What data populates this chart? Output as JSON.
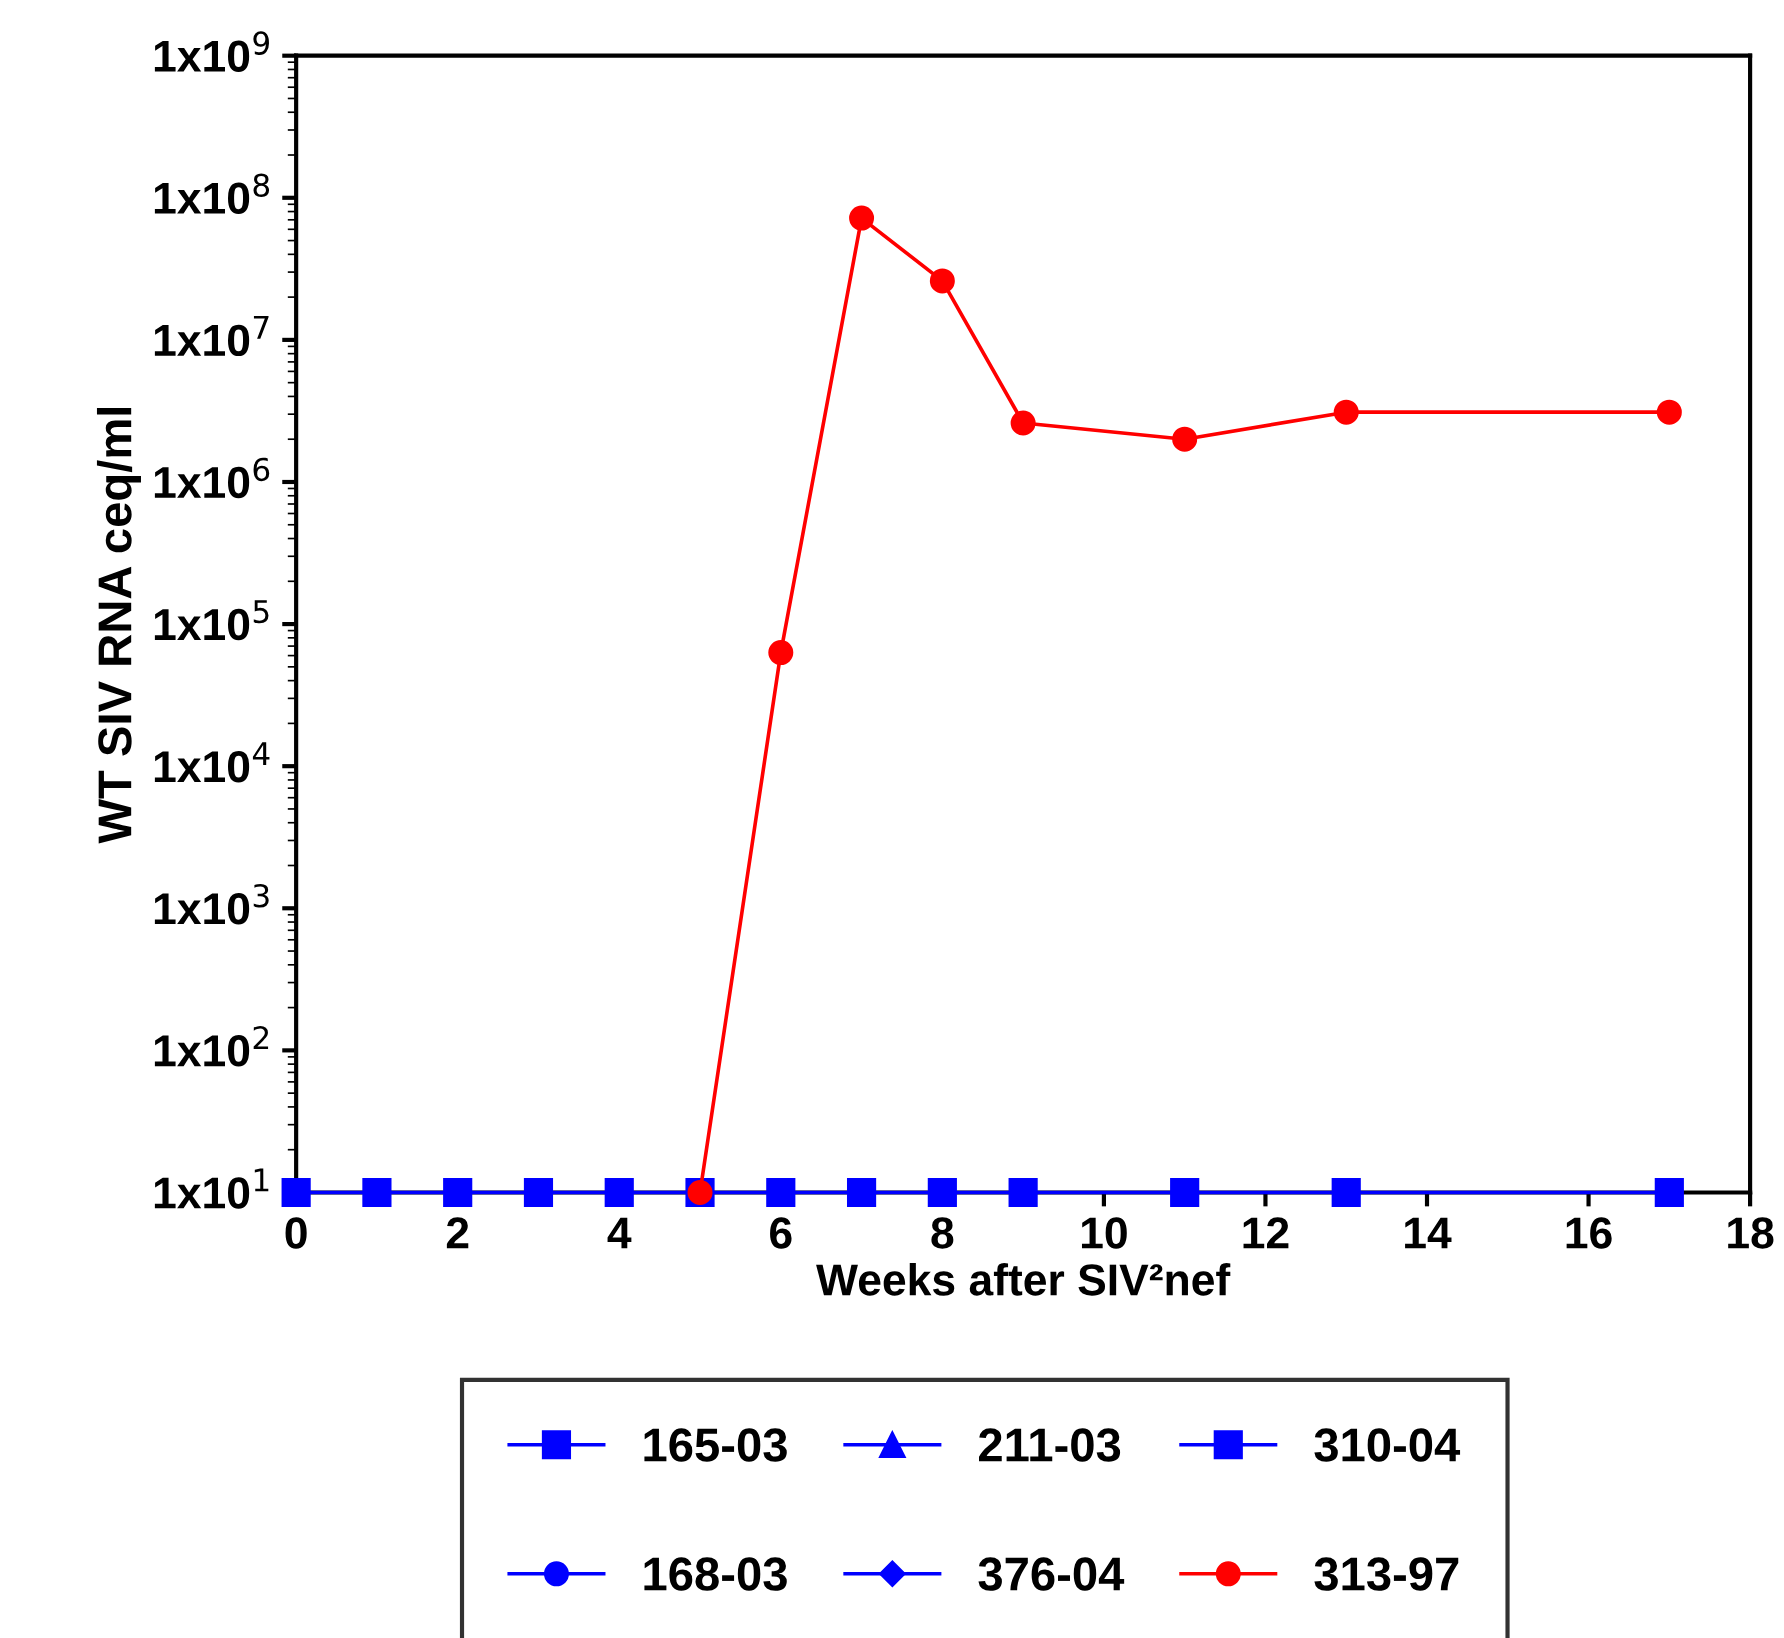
{
  "chart_data": {
    "type": "line",
    "xlabel": "Weeks after SIV²nef",
    "ylabel": "WT SIV RNA ceq/ml",
    "log": "y",
    "grid": false,
    "legend": "bottom",
    "line_style": "solid",
    "xlim": [
      0,
      18
    ],
    "xticks": [
      0,
      2,
      4,
      6,
      8,
      10,
      12,
      14,
      16,
      18
    ],
    "ylim": [
      10,
      1000000000
    ],
    "yticks": [
      {
        "value": 10,
        "label": "1x10$^{1}$"
      },
      {
        "value": 100,
        "label": "1x10$^{2}$"
      },
      {
        "value": 1000,
        "label": "1x10$^{3}$"
      },
      {
        "value": 10000,
        "label": "1x10$^{4}$"
      },
      {
        "value": 100000,
        "label": "1x10$^{5}$"
      },
      {
        "value": 1000000,
        "label": "1x10$^{6}$"
      },
      {
        "value": 10000000,
        "label": "1x10$^{7}$"
      },
      {
        "value": 100000000,
        "label": "1x10$^{8}$"
      },
      {
        "value": 1000000000,
        "label": "1x10$^{9}$"
      }
    ],
    "series": [
      {
        "name": "165-03",
        "color": "#0000ff",
        "marker": "square"
      },
      {
        "name": "168-03",
        "color": "#0000ff",
        "marker": "circle"
      },
      {
        "name": "211-03",
        "color": "#0000ff",
        "marker": "triangle"
      },
      {
        "name": "376-04",
        "color": "#0000ff",
        "marker": "diamond"
      },
      {
        "name": "310-04",
        "color": "#0000ff",
        "marker": "square",
        "x": [
          0,
          1,
          2,
          3,
          4,
          5,
          6,
          7,
          8,
          9,
          11,
          13,
          17
        ],
        "values": [
          10,
          10,
          10,
          10,
          10,
          10,
          10,
          10,
          10,
          10,
          10,
          10,
          10
        ]
      },
      {
        "name": "313-97",
        "color": "#ff0000",
        "marker": "circle",
        "x": [
          5,
          6,
          7,
          8,
          9,
          11,
          13,
          17
        ],
        "values": [
          10,
          63000,
          72000000,
          26000000,
          2600000,
          2000000,
          3100000,
          3100000
        ]
      }
    ]
  }
}
